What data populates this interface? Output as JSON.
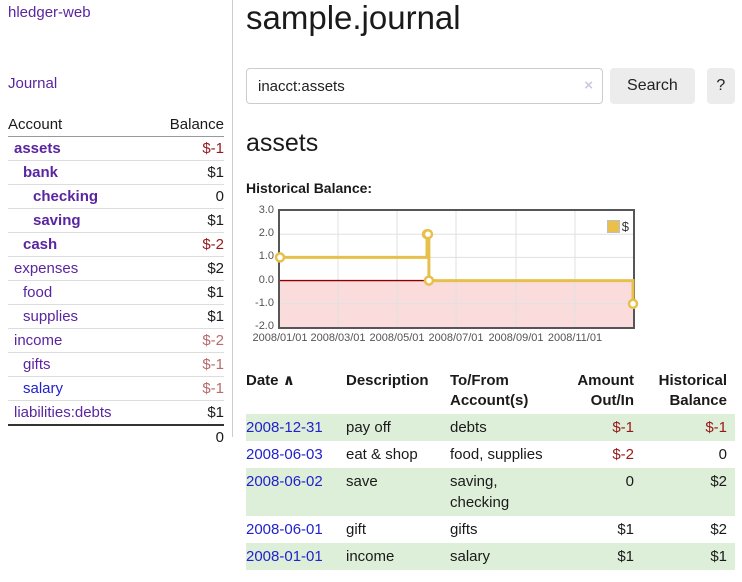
{
  "app": {
    "brand": "hledger-web",
    "nav_journal": "Journal"
  },
  "sidebar": {
    "col_account": "Account",
    "col_balance": "Balance",
    "rows": [
      {
        "name": "assets",
        "balance": "$-1"
      },
      {
        "name": "bank",
        "balance": "$1"
      },
      {
        "name": "checking",
        "balance": "0"
      },
      {
        "name": "saving",
        "balance": "$1"
      },
      {
        "name": "cash",
        "balance": "$-2"
      },
      {
        "name": "expenses",
        "balance": "$2"
      },
      {
        "name": "food",
        "balance": "$1"
      },
      {
        "name": "supplies",
        "balance": "$1"
      },
      {
        "name": "income",
        "balance": "$-2"
      },
      {
        "name": "gifts",
        "balance": "$-1"
      },
      {
        "name": "salary",
        "balance": "$-1"
      },
      {
        "name": "liabilities:debts",
        "balance": "$1"
      }
    ],
    "total": "0"
  },
  "header": {
    "title": "sample.journal"
  },
  "search": {
    "value": "inacct:assets",
    "clear_icon": "×",
    "button_label": "Search",
    "help_label": "?"
  },
  "account_page": {
    "title": "assets",
    "chart_heading": "Historical Balance:"
  },
  "chart_data": {
    "type": "line",
    "style": "steps",
    "title": "Historical Balance:",
    "series": [
      {
        "name": "$",
        "color": "#e7c04c",
        "points": [
          [
            "2008-01-01",
            1
          ],
          [
            "2008-06-01",
            2
          ],
          [
            "2008-06-02",
            2
          ],
          [
            "2008-06-03",
            0
          ],
          [
            "2008-12-31",
            -1
          ]
        ]
      }
    ],
    "xlim": [
      "2008-01-01",
      "2008-12-31"
    ],
    "ylim": [
      -2,
      3
    ],
    "x_ticks": [
      "2008/01/01",
      "2008/03/01",
      "2008/05/01",
      "2008/07/01",
      "2008/09/01",
      "2008/11/01"
    ],
    "y_ticks": [
      "3.0",
      "2.0",
      "1.0",
      "0.0",
      "-1.0",
      "-2.0"
    ],
    "grid": true,
    "grid_color": "#e0e0e0",
    "zero_line_color": "#8b0000",
    "negative_region_color": "#fbdcdc",
    "legend": {
      "label": "$",
      "position": "top-right",
      "swatch_color": "#e8c04a"
    }
  },
  "register": {
    "columns": {
      "date": "Date",
      "sort_indicator": "∧",
      "description": "Description",
      "accounts": "To/From Account(s)",
      "amount": "Amount Out/In",
      "balance": "Historical Balance"
    },
    "rows": [
      {
        "date": "2008-12-31",
        "description": "pay off",
        "accounts": "debts",
        "amount": "$-1",
        "balance": "$-1"
      },
      {
        "date": "2008-06-03",
        "description": "eat & shop",
        "accounts": "food, supplies",
        "amount": "$-2",
        "balance": "0"
      },
      {
        "date": "2008-06-02",
        "description": "save",
        "accounts": "saving, checking",
        "amount": "0",
        "balance": "$2"
      },
      {
        "date": "2008-06-01",
        "description": "gift",
        "accounts": "gifts",
        "amount": "$1",
        "balance": "$2"
      },
      {
        "date": "2008-01-01",
        "description": "income",
        "accounts": "salary",
        "amount": "$1",
        "balance": "$1"
      }
    ]
  }
}
